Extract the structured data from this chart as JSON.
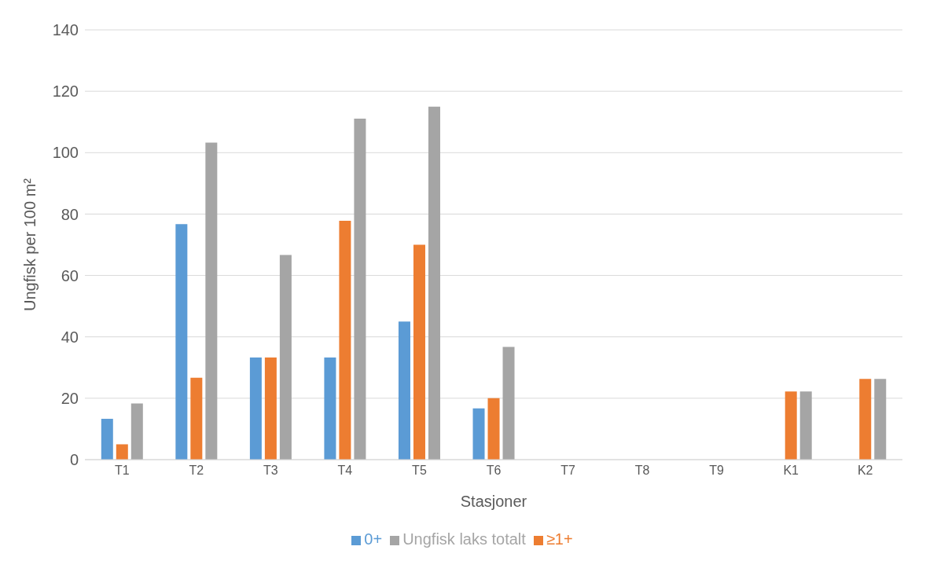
{
  "chart_data": {
    "type": "bar",
    "xlabel": "Stasjoner",
    "ylabel": "Ungfisk per 100 m²",
    "categories": [
      "T1",
      "T2",
      "T3",
      "T4",
      "T5",
      "T6",
      "T7",
      "T8",
      "T9",
      "K1",
      "K2"
    ],
    "series": [
      {
        "name": "0+",
        "color": "#5b9bd5",
        "values": [
          13.3,
          76.7,
          33.3,
          33.3,
          45,
          16.7,
          0,
          0,
          0,
          0,
          0
        ]
      },
      {
        "name": "≥1+",
        "color": "#ed7d31",
        "values": [
          5,
          26.7,
          33.3,
          77.8,
          70,
          20,
          0,
          0,
          0,
          22.2,
          26.3
        ]
      },
      {
        "name": "Ungfisk laks totalt",
        "color": "#a5a5a5",
        "values": [
          18.3,
          103.3,
          66.7,
          111.1,
          115,
          36.7,
          0,
          0,
          0,
          22.2,
          26.3
        ]
      }
    ],
    "ylim": [
      0,
      140
    ],
    "yticks": [
      0,
      20,
      40,
      60,
      80,
      100,
      120,
      140
    ],
    "grid": "y",
    "legend": "bottom"
  }
}
